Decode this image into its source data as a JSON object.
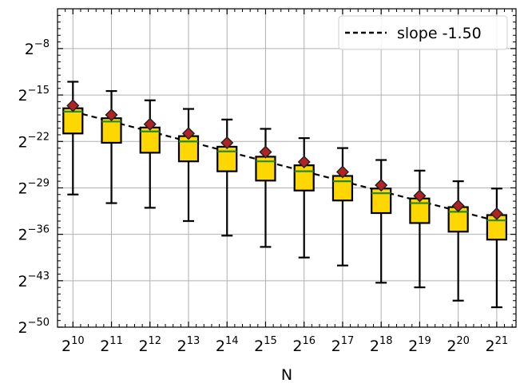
{
  "chart_data": {
    "type": "box",
    "xlabel": "N",
    "ylabel": "",
    "x_scale": "log2",
    "y_scale": "log2",
    "xlim_exp": [
      9.6,
      21.5
    ],
    "ylim_exp": [
      -50,
      -2
    ],
    "x_tick_exps": [
      10,
      11,
      12,
      13,
      14,
      15,
      16,
      17,
      18,
      19,
      20,
      21
    ],
    "y_tick_exps": [
      -8,
      -15,
      -22,
      -29,
      -36,
      -43,
      -50
    ],
    "grid": true,
    "legend": {
      "position": "top-right",
      "entries": [
        {
          "label": "slope -1.50",
          "style": "dashed",
          "color": "#000000"
        }
      ]
    },
    "colors": {
      "box_fill": "#FFD700",
      "box_edge": "#000000",
      "median": "#228B22",
      "mean_marker": "#B22222",
      "fit_line": "#000000",
      "grid": "#b0b0b0"
    },
    "boxes": [
      {
        "x_exp": 10,
        "whisker_low": -30.0,
        "q1": -20.8,
        "median": -17.5,
        "q3": -17.0,
        "whisker_high": -13.0,
        "mean": -16.6
      },
      {
        "x_exp": 11,
        "whisker_low": -31.3,
        "q1": -22.2,
        "median": -19.0,
        "q3": -18.5,
        "whisker_high": -14.4,
        "mean": -18.0
      },
      {
        "x_exp": 12,
        "whisker_low": -32.0,
        "q1": -23.7,
        "median": -20.5,
        "q3": -19.9,
        "whisker_high": -15.8,
        "mean": -19.4
      },
      {
        "x_exp": 13,
        "whisker_low": -34.0,
        "q1": -25.0,
        "median": -22.0,
        "q3": -21.2,
        "whisker_high": -17.1,
        "mean": -20.8
      },
      {
        "x_exp": 14,
        "whisker_low": -36.2,
        "q1": -26.5,
        "median": -23.5,
        "q3": -22.8,
        "whisker_high": -18.7,
        "mean": -22.2
      },
      {
        "x_exp": 15,
        "whisker_low": -37.9,
        "q1": -27.9,
        "median": -25.0,
        "q3": -24.3,
        "whisker_high": -20.1,
        "mean": -23.6
      },
      {
        "x_exp": 16,
        "whisker_low": -39.5,
        "q1": -29.4,
        "median": -26.5,
        "q3": -25.6,
        "whisker_high": -21.5,
        "mean": -25.1
      },
      {
        "x_exp": 17,
        "whisker_low": -40.7,
        "q1": -30.9,
        "median": -28.0,
        "q3": -27.2,
        "whisker_high": -23.0,
        "mean": -26.6
      },
      {
        "x_exp": 18,
        "whisker_low": -43.3,
        "q1": -32.8,
        "median": -29.8,
        "q3": -29.1,
        "whisker_high": -24.8,
        "mean": -28.6
      },
      {
        "x_exp": 19,
        "whisker_low": -44.0,
        "q1": -34.3,
        "median": -31.3,
        "q3": -30.6,
        "whisker_high": -26.4,
        "mean": -30.2
      },
      {
        "x_exp": 20,
        "whisker_low": -46.0,
        "q1": -35.6,
        "median": -32.6,
        "q3": -31.9,
        "whisker_high": -28.0,
        "mean": -31.7
      },
      {
        "x_exp": 21,
        "whisker_low": -47.0,
        "q1": -36.8,
        "median": -33.9,
        "q3": -33.1,
        "whisker_high": -29.1,
        "mean": -32.9
      }
    ],
    "fit_line": {
      "label": "slope -1.50",
      "x_exp": [
        10,
        21
      ],
      "y_exp": [
        -17.5,
        -34.0
      ]
    }
  }
}
